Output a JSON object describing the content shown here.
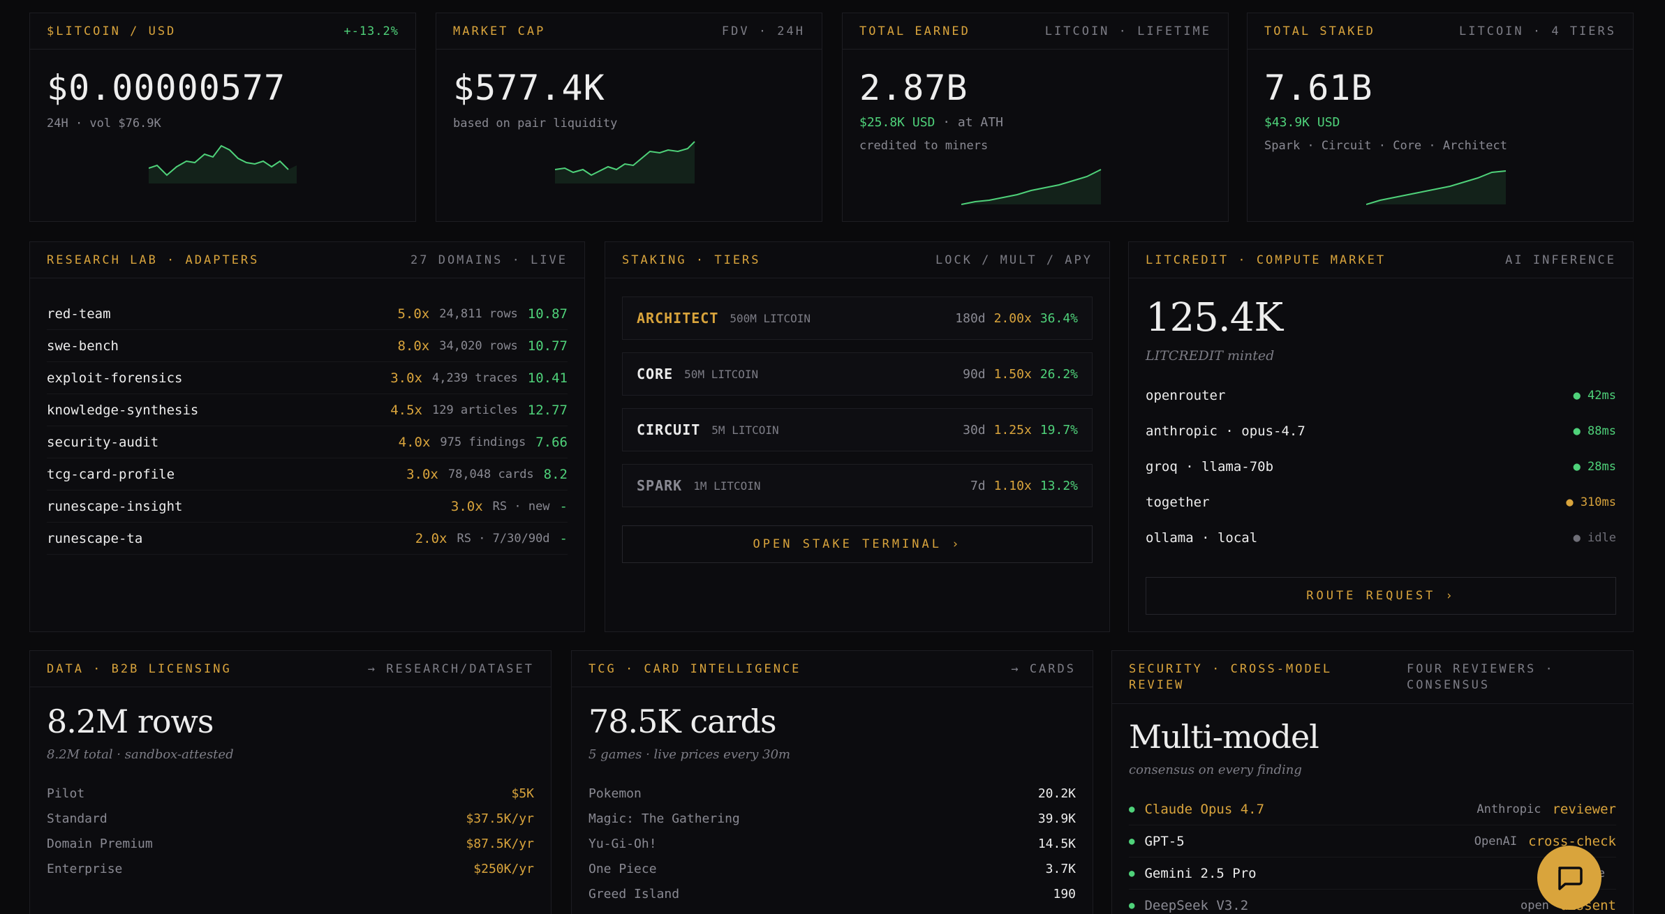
{
  "cards": [
    {
      "title": "$LITCOIN / USD",
      "meta": "+-13.2%",
      "value": "$0.00000577",
      "sub1": "24H · vol $76.9K",
      "sub2": ""
    },
    {
      "title": "MARKET CAP",
      "meta": "FDV · 24H",
      "value": "$577.4K",
      "sub1": "based on pair liquidity",
      "sub2": ""
    },
    {
      "title": "TOTAL EARNED",
      "meta": "LITCOIN · LIFETIME",
      "value": "2.87B",
      "sub1_green": "$25.8K USD",
      "sub1_rest": "· at ATH",
      "sub2": "credited to miners"
    },
    {
      "title": "TOTAL STAKED",
      "meta": "LITCOIN · 4 TIERS",
      "value": "7.61B",
      "sub1_green": "$43.9K USD",
      "sub1_rest": "",
      "sub2": "Spark · Circuit · Core · Architect"
    }
  ],
  "research": {
    "title": "RESEARCH LAB · ADAPTERS",
    "meta": "27 DOMAINS · LIVE",
    "rows": [
      {
        "name": "red-team",
        "mult": "5.0x",
        "info": "24,811 rows",
        "score": "10.87"
      },
      {
        "name": "swe-bench",
        "mult": "8.0x",
        "info": "34,020 rows",
        "score": "10.77"
      },
      {
        "name": "exploit-forensics",
        "mult": "3.0x",
        "info": "4,239 traces",
        "score": "10.41"
      },
      {
        "name": "knowledge-synthesis",
        "mult": "4.5x",
        "info": "129 articles",
        "score": "12.77"
      },
      {
        "name": "security-audit",
        "mult": "4.0x",
        "info": "975 findings",
        "score": "7.66"
      },
      {
        "name": "tcg-card-profile",
        "mult": "3.0x",
        "info": "78,048 cards",
        "score": "8.2"
      },
      {
        "name": "runescape-insight",
        "mult": "3.0x",
        "info": "RS · new",
        "score": "-"
      },
      {
        "name": "runescape-ta",
        "mult": "2.0x",
        "info": "RS · 7/30/90d",
        "score": "-"
      }
    ]
  },
  "staking": {
    "title": "STAKING · TIERS",
    "meta": "LOCK / MULT / APY",
    "tiers": [
      {
        "name": "ARCHITECT",
        "amount": "500M LITCOIN",
        "lock": "180d",
        "mult": "2.00x",
        "apy": "36.4%",
        "color": "#d9a43c"
      },
      {
        "name": "CORE",
        "amount": "50M LITCOIN",
        "lock": "90d",
        "mult": "1.50x",
        "apy": "26.2%",
        "color": "#ededed"
      },
      {
        "name": "CIRCUIT",
        "amount": "5M LITCOIN",
        "lock": "30d",
        "mult": "1.25x",
        "apy": "19.7%",
        "color": "#ededed"
      },
      {
        "name": "SPARK",
        "amount": "1M LITCOIN",
        "lock": "7d",
        "mult": "1.10x",
        "apy": "13.2%",
        "color": "#8a8a93"
      }
    ],
    "button": "OPEN STAKE TERMINAL ›"
  },
  "litcredit": {
    "title": "LITCREDIT · COMPUTE MARKET",
    "meta": "AI INFERENCE",
    "value": "125.4K",
    "sub": "LITCREDIT minted",
    "providers": [
      {
        "name": "openrouter",
        "status": "● 42ms",
        "color": "#4fd27a"
      },
      {
        "name": "anthropic · opus-4.7",
        "status": "● 88ms",
        "color": "#4fd27a"
      },
      {
        "name": "groq · llama-70b",
        "status": "● 28ms",
        "color": "#4fd27a"
      },
      {
        "name": "together",
        "status": "● 310ms",
        "color": "#d9a43c"
      },
      {
        "name": "ollama · local",
        "status": "● idle",
        "color": "#6f6f78"
      }
    ],
    "button": "ROUTE REQUEST ›"
  },
  "data": {
    "title": "DATA · B2B LICENSING",
    "meta": "→ RESEARCH/DATASET",
    "value": "8.2M rows",
    "sub": "8.2M total · sandbox-attested",
    "rows": [
      {
        "name": "Pilot",
        "price": "$5K"
      },
      {
        "name": "Standard",
        "price": "$37.5K/yr"
      },
      {
        "name": "Domain Premium",
        "price": "$87.5K/yr"
      },
      {
        "name": "Enterprise",
        "price": "$250K/yr"
      }
    ]
  },
  "tcg": {
    "title": "TCG · CARD INTELLIGENCE",
    "meta": "→ CARDS",
    "value": "78.5K cards",
    "sub": "5 games · live prices every 30m",
    "rows": [
      {
        "name": "Pokemon",
        "count": "20.2K"
      },
      {
        "name": "Magic: The Gathering",
        "count": "39.9K"
      },
      {
        "name": "Yu-Gi-Oh!",
        "count": "14.5K"
      },
      {
        "name": "One Piece",
        "count": "3.7K"
      },
      {
        "name": "Greed Island",
        "count": "190"
      }
    ]
  },
  "security": {
    "title_l1": "SECURITY · CROSS-MODEL",
    "title_l2": "REVIEW",
    "meta_l1": "FOUR REVIEWERS ·",
    "meta_l2": "CONSENSUS",
    "value": "Multi-model",
    "sub": "consensus on every finding",
    "reviewers": [
      {
        "name": "Claude Opus 4.7",
        "org": "Anthropic",
        "role": "reviewer",
        "nameColor": "#d9a43c"
      },
      {
        "name": "GPT-5",
        "org": "OpenAI",
        "role": "cross-check",
        "nameColor": "#ededed"
      },
      {
        "name": "Gemini 2.5 Pro",
        "org": "Google",
        "role": "",
        "nameColor": "#ededed"
      },
      {
        "name": "DeepSeek V3.2",
        "org": "open",
        "role": "dissent",
        "nameColor": "#8a8a93"
      }
    ]
  }
}
